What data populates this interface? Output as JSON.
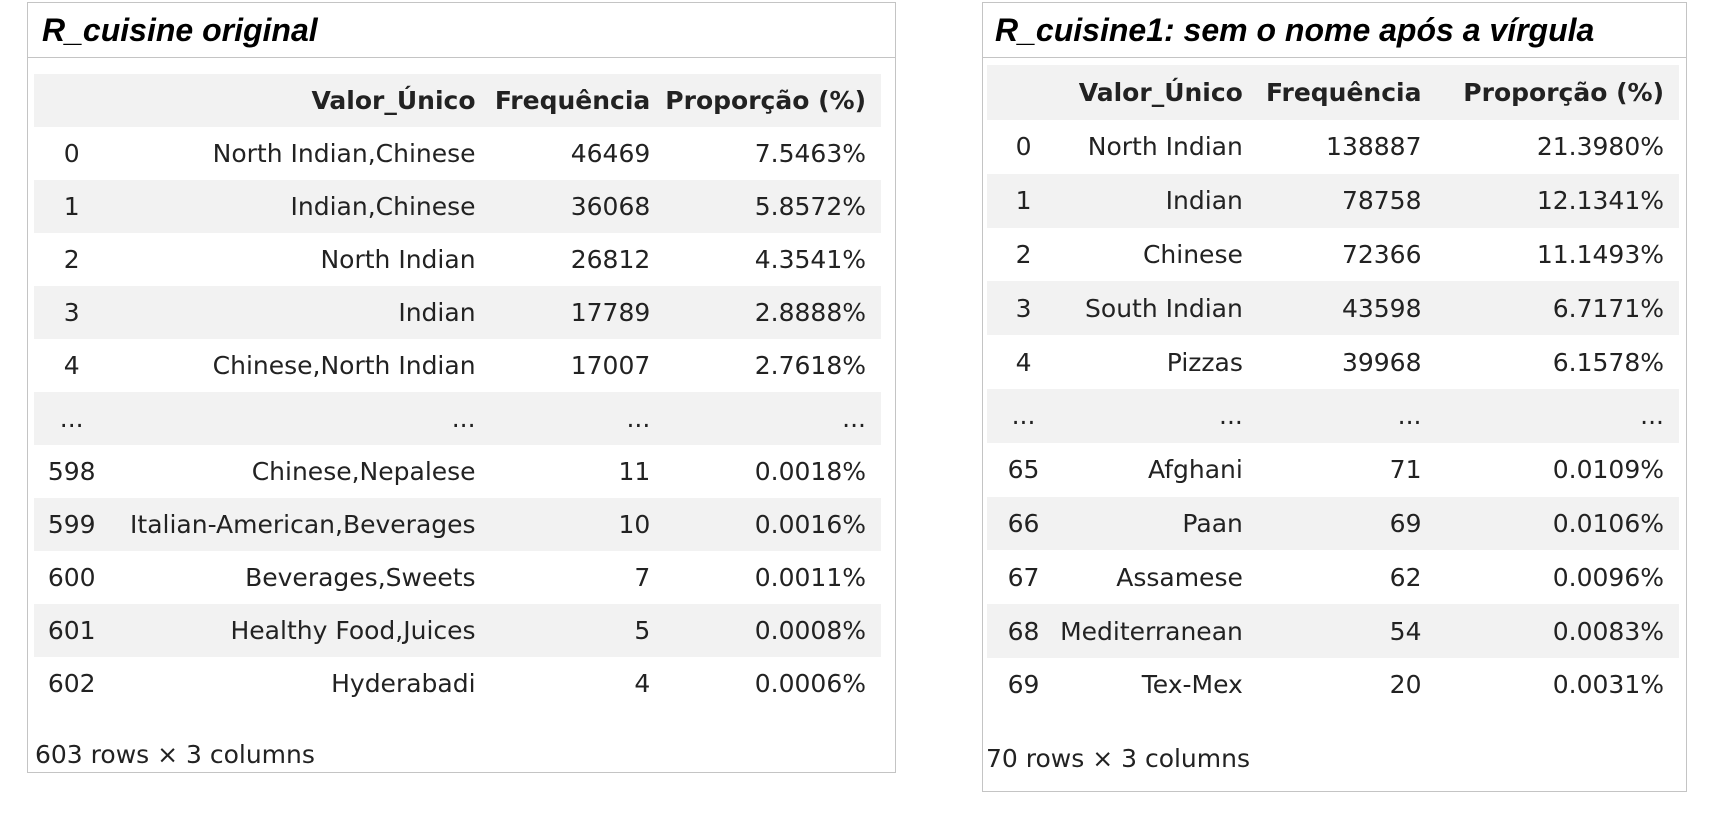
{
  "panels": [
    {
      "title": "R_cuisine original",
      "headers": [
        "",
        "Valor_Único",
        "Frequência",
        "Proporção (%)"
      ],
      "rows": [
        [
          "0",
          "North Indian,Chinese",
          "46469",
          "7.5463%"
        ],
        [
          "1",
          "Indian,Chinese",
          "36068",
          "5.8572%"
        ],
        [
          "2",
          "North Indian",
          "26812",
          "4.3541%"
        ],
        [
          "3",
          "Indian",
          "17789",
          "2.8888%"
        ],
        [
          "4",
          "Chinese,North Indian",
          "17007",
          "2.7618%"
        ],
        [
          "...",
          "...",
          "...",
          "..."
        ],
        [
          "598",
          "Chinese,Nepalese",
          "11",
          "0.0018%"
        ],
        [
          "599",
          "Italian-American,Beverages",
          "10",
          "0.0016%"
        ],
        [
          "600",
          "Beverages,Sweets",
          "7",
          "0.0011%"
        ],
        [
          "601",
          "Healthy Food,Juices",
          "5",
          "0.0008%"
        ],
        [
          "602",
          "Hyderabadi",
          "4",
          "0.0006%"
        ]
      ],
      "footer": "603 rows × 3 columns"
    },
    {
      "title": "R_cuisine1: sem o nome após a vírgula",
      "headers": [
        "",
        "Valor_Único",
        "Frequência",
        "Proporção (%)"
      ],
      "rows": [
        [
          "0",
          "North Indian",
          "138887",
          "21.3980%"
        ],
        [
          "1",
          "Indian",
          "78758",
          "12.1341%"
        ],
        [
          "2",
          "Chinese",
          "72366",
          "11.1493%"
        ],
        [
          "3",
          "South Indian",
          "43598",
          "6.7171%"
        ],
        [
          "4",
          "Pizzas",
          "39968",
          "6.1578%"
        ],
        [
          "...",
          "...",
          "...",
          "..."
        ],
        [
          "65",
          "Afghani",
          "71",
          "0.0109%"
        ],
        [
          "66",
          "Paan",
          "69",
          "0.0106%"
        ],
        [
          "67",
          "Assamese",
          "62",
          "0.0096%"
        ],
        [
          "68",
          "Mediterranean",
          "54",
          "0.0083%"
        ],
        [
          "69",
          "Tex-Mex",
          "20",
          "0.0031%"
        ]
      ],
      "footer": "70 rows × 3 columns"
    }
  ],
  "colors": {
    "header_bg": "#f2f2f2",
    "stripe_bg": "#f2f2f2",
    "border": "#c4c4c4",
    "text": "#222222"
  }
}
